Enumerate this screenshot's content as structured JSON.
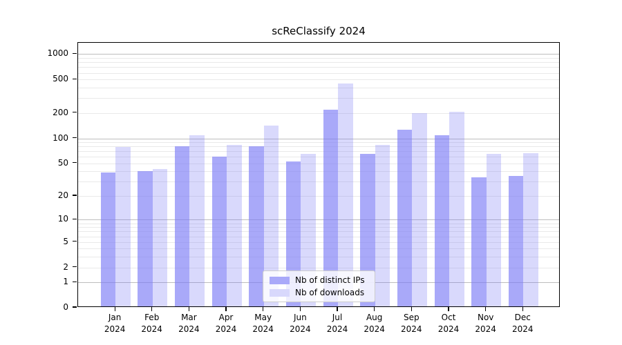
{
  "title": "scReClassify 2024",
  "chart_data": {
    "type": "bar",
    "title": "scReClassify 2024",
    "categories": [
      "Jan 2024",
      "Feb 2024",
      "Mar 2024",
      "Apr 2024",
      "May 2024",
      "Jun 2024",
      "Jul 2024",
      "Aug 2024",
      "Sep 2024",
      "Oct 2024",
      "Nov 2024",
      "Dec 2024"
    ],
    "series": [
      {
        "name": "Nb of distinct IPs",
        "values": [
          39,
          40,
          80,
          60,
          81,
          53,
          220,
          65,
          126,
          108,
          34,
          35
        ],
        "color": "rgba(118,118,246,0.63)",
        "swatch": "#a9a9f9"
      },
      {
        "name": "Nb of downloads",
        "values": [
          79,
          43,
          109,
          84,
          143,
          65,
          448,
          84,
          198,
          206,
          65,
          67
        ],
        "color": "rgba(118,118,246,0.28)",
        "swatch": "#d8d8fc"
      }
    ],
    "xlabel": "",
    "ylabel": "",
    "y_ticks": [
      0,
      1,
      2,
      5,
      10,
      20,
      50,
      100,
      200,
      500,
      1000
    ],
    "y_scale": "log1p",
    "y_range": [
      0,
      1380
    ],
    "grid": {
      "enabled": true,
      "major_color": "#bdbdbd",
      "minor_color": "#e9e9e9",
      "majors_at": "1, 10, 100, 1000",
      "minors_at": "2-9 times powers of 10"
    },
    "legend_position": "lower center inside plot"
  }
}
